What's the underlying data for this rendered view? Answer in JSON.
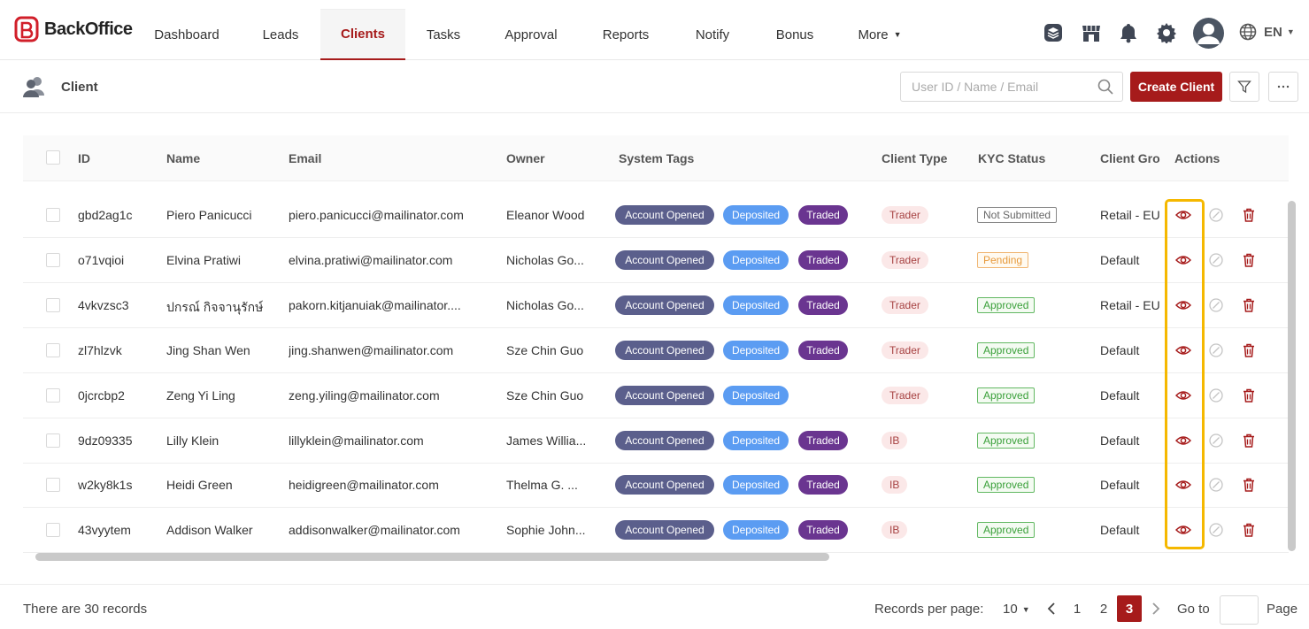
{
  "app": {
    "name": "BackOffice",
    "brand_color": "#a61b1b"
  },
  "nav": {
    "items": [
      {
        "label": "Dashboard"
      },
      {
        "label": "Leads"
      },
      {
        "label": "Clients",
        "active": true
      },
      {
        "label": "Tasks"
      },
      {
        "label": "Approval"
      },
      {
        "label": "Reports"
      },
      {
        "label": "Notify"
      },
      {
        "label": "Bonus"
      },
      {
        "label": "More"
      }
    ],
    "language": "EN",
    "icons": [
      "layers-icon",
      "store-icon",
      "bell-icon",
      "gear-icon",
      "avatar",
      "globe-icon"
    ]
  },
  "page": {
    "title": "Client",
    "search_placeholder": "User ID / Name / Email",
    "create_label": "Create Client"
  },
  "table": {
    "columns": [
      "ID",
      "Name",
      "Email",
      "Owner",
      "System Tags",
      "Client Type",
      "KYC Status",
      "Client Gro",
      "Actions"
    ],
    "rows": [
      {
        "id": "gbd2ag1c",
        "name": "Piero Panicucci",
        "email": "piero.panicucci@mailinator.com",
        "owner": "Eleanor Wood",
        "tags": [
          "Account Opened",
          "Deposited",
          "Traded"
        ],
        "client_type": "Trader",
        "kyc": "Not Submitted",
        "group": "Retail - EU"
      },
      {
        "id": "o71vqioi",
        "name": "Elvina Pratiwi",
        "email": "elvina.pratiwi@mailinator.com",
        "owner": "Nicholas Go...",
        "tags": [
          "Account Opened",
          "Deposited",
          "Traded"
        ],
        "client_type": "Trader",
        "kyc": "Pending",
        "group": "Default"
      },
      {
        "id": "4vkvzsc3",
        "name": "ปกรณ์ กิจจานุรักษ์",
        "email": "pakorn.kitjanuiak@mailinator....",
        "owner": "Nicholas Go...",
        "tags": [
          "Account Opened",
          "Deposited",
          "Traded"
        ],
        "client_type": "Trader",
        "kyc": "Approved",
        "group": "Retail - EU"
      },
      {
        "id": "zl7hlzvk",
        "name": "Jing Shan Wen",
        "email": "jing.shanwen@mailinator.com",
        "owner": "Sze Chin Guo",
        "tags": [
          "Account Opened",
          "Deposited",
          "Traded"
        ],
        "client_type": "Trader",
        "kyc": "Approved",
        "group": "Default"
      },
      {
        "id": "0jcrcbp2",
        "name": "Zeng Yi Ling",
        "email": "zeng.yiling@mailinator.com",
        "owner": "Sze Chin Guo",
        "tags": [
          "Account Opened",
          "Deposited"
        ],
        "client_type": "Trader",
        "kyc": "Approved",
        "group": "Default"
      },
      {
        "id": "9dz09335",
        "name": "Lilly Klein",
        "email": "lillyklein@mailinator.com",
        "owner": "James Willia...",
        "tags": [
          "Account Opened",
          "Deposited",
          "Traded"
        ],
        "client_type": "IB",
        "kyc": "Approved",
        "group": "Default"
      },
      {
        "id": "w2ky8k1s",
        "name": "Heidi Green",
        "email": "heidigreen@mailinator.com",
        "owner": "Thelma G. ...",
        "tags": [
          "Account Opened",
          "Deposited",
          "Traded"
        ],
        "client_type": "IB",
        "kyc": "Approved",
        "group": "Default"
      },
      {
        "id": "43vyytem",
        "name": "Addison Walker",
        "email": "addisonwalker@mailinator.com",
        "owner": "Sophie John...",
        "tags": [
          "Account Opened",
          "Deposited",
          "Traded"
        ],
        "client_type": "IB",
        "kyc": "Approved",
        "group": "Default"
      }
    ]
  },
  "footer": {
    "records_text": "There are 30 records",
    "per_page_label": "Records per page:",
    "per_page_value": "10",
    "pages": [
      "1",
      "2",
      "3"
    ],
    "current_page": "3",
    "goto_label": "Go to",
    "page_label": "Page"
  },
  "colors": {
    "tag_account_opened": "#5b5f8c",
    "tag_deposited": "#5b9cf2",
    "tag_traded": "#6a3590",
    "highlight": "#f5b800"
  }
}
